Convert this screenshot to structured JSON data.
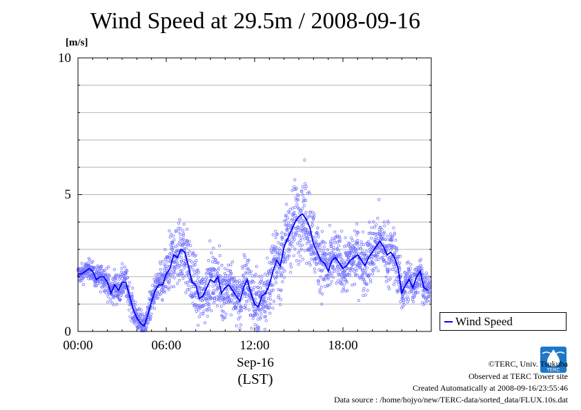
{
  "chart_data": {
    "type": "line",
    "title": "Wind Speed at 29.5m / 2008-09-16",
    "ylabel": "[m/s]",
    "xlabel": "(LST)",
    "date_label": "Sep-16",
    "ylim": [
      0,
      10
    ],
    "yticks": [
      "0",
      "5",
      "10"
    ],
    "xlim_hours": [
      0,
      24
    ],
    "xticks": [
      {
        "hour": 0,
        "label": "00:00"
      },
      {
        "hour": 6,
        "label": "06:00"
      },
      {
        "hour": 12,
        "label": "12:00"
      },
      {
        "hour": 18,
        "label": "18:00"
      }
    ],
    "grid": true,
    "legend_position": "bottom-right, outside plot",
    "series": [
      {
        "name": "Wind Speed",
        "color": "#0000ee",
        "point_color": "#7070ff",
        "x_hours": [
          0.0,
          0.25,
          0.5,
          0.75,
          1.0,
          1.25,
          1.5,
          1.75,
          2.0,
          2.25,
          2.5,
          2.75,
          3.0,
          3.25,
          3.5,
          3.75,
          4.0,
          4.25,
          4.5,
          4.75,
          5.0,
          5.25,
          5.5,
          5.75,
          6.0,
          6.25,
          6.5,
          6.75,
          7.0,
          7.25,
          7.5,
          7.75,
          8.0,
          8.25,
          8.5,
          8.75,
          9.0,
          9.25,
          9.5,
          9.75,
          10.0,
          10.25,
          10.5,
          10.75,
          11.0,
          11.25,
          11.5,
          11.75,
          12.0,
          12.25,
          12.5,
          12.75,
          13.0,
          13.25,
          13.5,
          13.75,
          14.0,
          14.25,
          14.5,
          14.75,
          15.0,
          15.25,
          15.5,
          15.75,
          16.0,
          16.25,
          16.5,
          16.75,
          17.0,
          17.25,
          17.5,
          17.75,
          18.0,
          18.25,
          18.5,
          18.75,
          19.0,
          19.25,
          19.5,
          19.75,
          20.0,
          20.25,
          20.5,
          20.75,
          21.0,
          21.25,
          21.5,
          21.75,
          22.0,
          22.25,
          22.5,
          22.75,
          23.0,
          23.25,
          23.5,
          23.75
        ],
        "values": [
          2.1,
          2.1,
          2.2,
          2.3,
          2.2,
          1.9,
          2.0,
          2.0,
          1.8,
          1.4,
          1.7,
          1.5,
          1.8,
          1.8,
          1.3,
          0.8,
          0.5,
          0.3,
          0.2,
          0.6,
          1.1,
          1.5,
          1.7,
          1.7,
          2.1,
          2.3,
          2.8,
          2.7,
          3.0,
          2.9,
          2.4,
          1.8,
          1.7,
          1.2,
          1.3,
          1.6,
          1.9,
          1.8,
          2.0,
          1.4,
          1.6,
          1.7,
          1.5,
          1.3,
          1.1,
          1.6,
          1.9,
          1.4,
          1.0,
          0.9,
          1.3,
          1.4,
          1.7,
          2.2,
          2.6,
          2.4,
          3.1,
          3.4,
          3.7,
          4.0,
          4.2,
          4.3,
          4.1,
          3.8,
          3.2,
          2.9,
          2.6,
          2.5,
          2.2,
          2.6,
          2.7,
          2.5,
          2.3,
          2.4,
          2.6,
          2.7,
          2.8,
          2.6,
          2.4,
          2.7,
          2.9,
          3.1,
          3.3,
          3.1,
          2.8,
          2.9,
          2.7,
          2.3,
          1.4,
          1.7,
          1.9,
          1.6,
          2.0,
          2.2,
          1.6,
          1.5
        ],
        "spread": [
          0.3,
          0.3,
          0.3,
          0.3,
          0.3,
          0.4,
          0.4,
          0.4,
          0.5,
          0.5,
          0.5,
          0.5,
          0.5,
          0.5,
          0.5,
          0.5,
          0.4,
          0.4,
          0.4,
          0.4,
          0.5,
          0.5,
          0.6,
          0.7,
          0.8,
          0.9,
          1.0,
          1.1,
          1.1,
          1.1,
          1.0,
          1.0,
          1.0,
          0.9,
          0.9,
          0.9,
          0.9,
          0.9,
          0.9,
          0.9,
          0.9,
          0.9,
          0.9,
          0.9,
          0.9,
          1.0,
          1.0,
          1.0,
          1.0,
          1.0,
          1.0,
          1.0,
          1.0,
          1.0,
          1.1,
          1.1,
          1.2,
          1.2,
          1.2,
          1.3,
          1.3,
          1.3,
          1.3,
          1.2,
          1.2,
          1.1,
          1.0,
          1.0,
          0.9,
          0.9,
          0.9,
          0.9,
          0.9,
          0.9,
          0.9,
          0.9,
          0.9,
          1.0,
          1.0,
          1.0,
          1.0,
          1.0,
          1.0,
          1.0,
          1.0,
          0.9,
          0.9,
          0.8,
          0.7,
          0.7,
          0.7,
          0.6,
          0.6,
          0.6,
          0.5,
          0.5
        ]
      }
    ]
  },
  "footer": {
    "copyright": "©TERC, Univ. Tsukuba",
    "site": "Observed at TERC Tower site",
    "created": "Created Automatically at 2008-09-16/23:55:46",
    "source": "Data source : /home/hojyo/new/TERC-data/sorted_data/FLUX.10s.dat"
  },
  "logo": {
    "text": "TERC",
    "color": "#1e78c8"
  }
}
